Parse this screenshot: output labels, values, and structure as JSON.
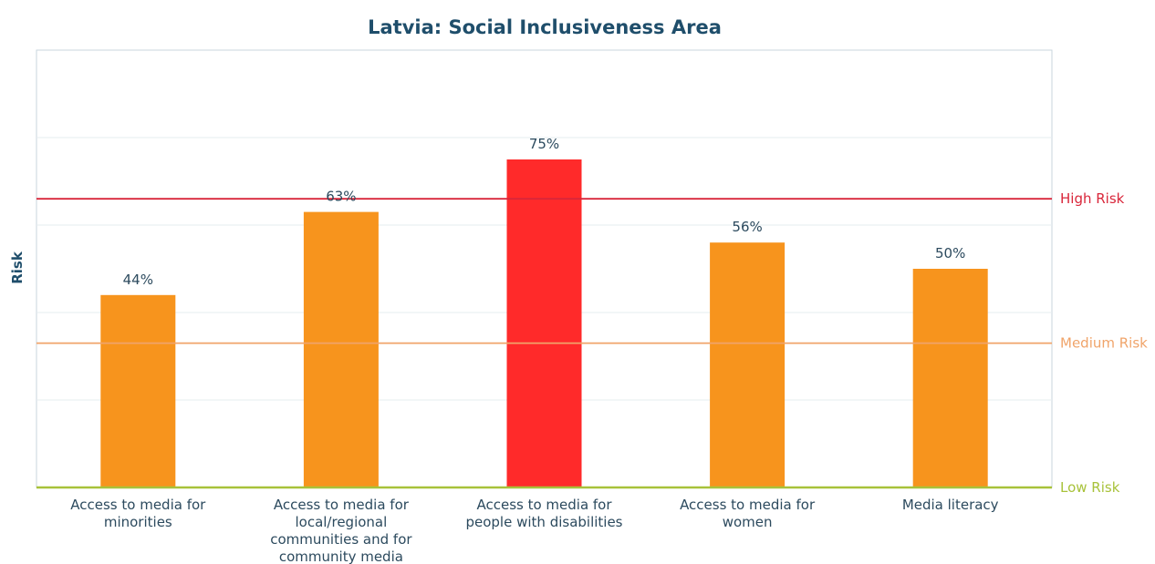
{
  "chart_data": {
    "type": "bar",
    "title": "Latvia: Social Inclusiveness Area",
    "ylabel": "Risk",
    "xlabel": "",
    "ylim": [
      0,
      100
    ],
    "grid": true,
    "categories": [
      [
        "Access to media for",
        "minorities"
      ],
      [
        "Access to media for",
        "local/regional",
        "communities and for",
        "community media"
      ],
      [
        "Access to media for",
        "people with disabilities"
      ],
      [
        "Access to media for",
        "women"
      ],
      [
        "Media literacy"
      ]
    ],
    "values": [
      44,
      63,
      75,
      56,
      50
    ],
    "value_labels": [
      "44%",
      "63%",
      "75%",
      "56%",
      "50%"
    ],
    "bar_colors": [
      "#f7941d",
      "#f7941d",
      "#ff2a2a",
      "#f7941d",
      "#f7941d"
    ],
    "thresholds": [
      {
        "label": "High Risk",
        "value": 66,
        "color": "#d9263a"
      },
      {
        "label": "Medium Risk",
        "value": 33,
        "color": "#f0a46a"
      },
      {
        "label": "Low Risk",
        "value": 0,
        "color": "#a8c23a"
      }
    ]
  }
}
